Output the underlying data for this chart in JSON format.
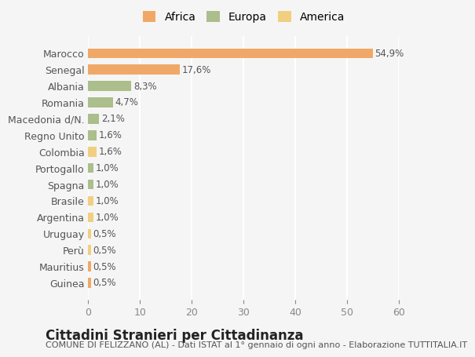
{
  "categories": [
    "Guinea",
    "Mauritius",
    "Perù",
    "Uruguay",
    "Argentina",
    "Brasile",
    "Spagna",
    "Portogallo",
    "Colombia",
    "Regno Unito",
    "Macedonia d/N.",
    "Romania",
    "Albania",
    "Senegal",
    "Marocco"
  ],
  "values": [
    0.5,
    0.5,
    0.5,
    0.5,
    1.0,
    1.0,
    1.0,
    1.0,
    1.6,
    1.6,
    2.1,
    4.7,
    8.3,
    17.6,
    54.9
  ],
  "labels": [
    "0,5%",
    "0,5%",
    "0,5%",
    "0,5%",
    "1,0%",
    "1,0%",
    "1,0%",
    "1,0%",
    "1,6%",
    "1,6%",
    "2,1%",
    "4,7%",
    "8,3%",
    "17,6%",
    "54,9%"
  ],
  "continents": [
    "Africa",
    "Africa",
    "America",
    "America",
    "America",
    "America",
    "Europa",
    "Europa",
    "America",
    "Europa",
    "Europa",
    "Europa",
    "Europa",
    "Africa",
    "Africa"
  ],
  "colors": {
    "Africa": "#F0A868",
    "Europa": "#ABBE8B",
    "America": "#F0D080"
  },
  "legend_colors": {
    "Africa": "#F0A868",
    "Europa": "#ABBE8B",
    "America": "#F0D080"
  },
  "background_color": "#f5f5f5",
  "title": "Cittadini Stranieri per Cittadinanza",
  "subtitle": "COMUNE DI FELIZZANO (AL) - Dati ISTAT al 1° gennaio di ogni anno - Elaborazione TUTTITALIA.IT",
  "xlim": [
    0,
    60
  ],
  "xticks": [
    0,
    10,
    20,
    30,
    40,
    50,
    60
  ],
  "grid_color": "#ffffff",
  "bar_height": 0.6,
  "title_fontsize": 12,
  "subtitle_fontsize": 8,
  "tick_fontsize": 9,
  "label_fontsize": 8.5
}
